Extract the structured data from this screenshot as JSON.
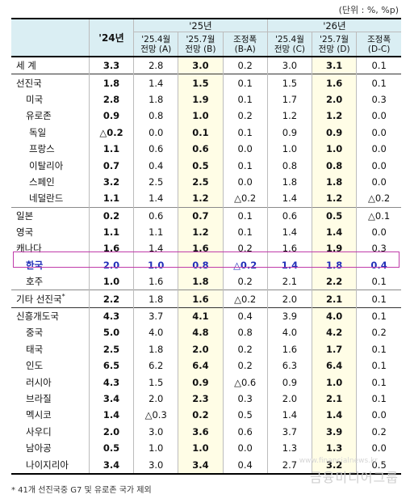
{
  "unit_note": "(단위 : %, %p)",
  "headers": {
    "col24": "'24년",
    "col25": "'25년",
    "col26": "'26년",
    "sub25": [
      [
        "'25.4월",
        "전망 (A)"
      ],
      [
        "'25.7월",
        "전망 (B)"
      ],
      [
        "조정폭",
        "(B-A)"
      ]
    ],
    "sub26": [
      [
        "'25.4월",
        "전망 (C)"
      ],
      [
        "'25.7월",
        "전망 (D)"
      ],
      [
        "조정폭",
        "(D-C)"
      ]
    ]
  },
  "rows": [
    {
      "name": "세  계",
      "v": [
        "3.3",
        "2.8",
        "3.0",
        "0.2",
        "3.0",
        "3.1",
        "0.1"
      ]
    },
    {
      "name": "선진국",
      "v": [
        "1.8",
        "1.4",
        "1.5",
        "0.1",
        "1.5",
        "1.6",
        "0.1"
      ]
    },
    {
      "name": "미국",
      "v": [
        "2.8",
        "1.8",
        "1.9",
        "0.1",
        "1.7",
        "2.0",
        "0.3"
      ]
    },
    {
      "name": "유로존",
      "v": [
        "0.9",
        "0.8",
        "1.0",
        "0.2",
        "1.2",
        "1.2",
        "0.0"
      ]
    },
    {
      "name": "독일",
      "v": [
        "△0.2",
        "0.0",
        "0.1",
        "0.1",
        "0.9",
        "0.9",
        "0.0"
      ]
    },
    {
      "name": "프랑스",
      "v": [
        "1.1",
        "0.6",
        "0.6",
        "0.0",
        "1.0",
        "1.0",
        "0.0"
      ]
    },
    {
      "name": "이탈리아",
      "v": [
        "0.7",
        "0.4",
        "0.5",
        "0.1",
        "0.8",
        "0.8",
        "0.0"
      ]
    },
    {
      "name": "스페인",
      "v": [
        "3.2",
        "2.5",
        "2.5",
        "0.0",
        "1.8",
        "1.8",
        "0.0"
      ]
    },
    {
      "name": "네덜란드",
      "v": [
        "1.1",
        "1.4",
        "1.2",
        "△0.2",
        "1.4",
        "1.2",
        "△0.2"
      ]
    },
    {
      "name": "일본",
      "v": [
        "0.2",
        "0.6",
        "0.7",
        "0.1",
        "0.6",
        "0.5",
        "△0.1"
      ]
    },
    {
      "name": "영국",
      "v": [
        "1.1",
        "1.1",
        "1.2",
        "0.1",
        "1.4",
        "1.4",
        "0.0"
      ]
    },
    {
      "name": "캐나다",
      "v": [
        "1.6",
        "1.4",
        "1.6",
        "0.2",
        "1.6",
        "1.9",
        "0.3"
      ]
    },
    {
      "name": "한국",
      "v": [
        "2.0",
        "1.0",
        "0.8",
        "△0.2",
        "1.4",
        "1.8",
        "0.4"
      ]
    },
    {
      "name": "호주",
      "v": [
        "1.0",
        "1.6",
        "1.8",
        "0.2",
        "2.1",
        "2.2",
        "0.1"
      ]
    },
    {
      "name": "기타 선진국",
      "v": [
        "2.2",
        "1.8",
        "1.6",
        "△0.2",
        "2.0",
        "2.1",
        "0.1"
      ]
    },
    {
      "name": "신흥개도국",
      "v": [
        "4.3",
        "3.7",
        "4.1",
        "0.4",
        "3.9",
        "4.0",
        "0.1"
      ]
    },
    {
      "name": "중국",
      "v": [
        "5.0",
        "4.0",
        "4.8",
        "0.8",
        "4.0",
        "4.2",
        "0.2"
      ]
    },
    {
      "name": "태국",
      "v": [
        "2.5",
        "1.8",
        "2.0",
        "0.2",
        "1.6",
        "1.7",
        "0.1"
      ]
    },
    {
      "name": "인도",
      "v": [
        "6.5",
        "6.2",
        "6.4",
        "0.2",
        "6.3",
        "6.4",
        "0.1"
      ]
    },
    {
      "name": "러시아",
      "v": [
        "4.3",
        "1.5",
        "0.9",
        "△0.6",
        "0.9",
        "1.0",
        "0.1"
      ]
    },
    {
      "name": "브라질",
      "v": [
        "3.4",
        "2.0",
        "2.3",
        "0.3",
        "2.0",
        "2.1",
        "0.1"
      ]
    },
    {
      "name": "멕시코",
      "v": [
        "1.4",
        "△0.3",
        "0.2",
        "0.5",
        "1.4",
        "1.4",
        "0.0"
      ]
    },
    {
      "name": "사우디",
      "v": [
        "2.0",
        "3.0",
        "3.6",
        "0.6",
        "3.7",
        "3.9",
        "0.2"
      ]
    },
    {
      "name": "남아공",
      "v": [
        "0.5",
        "1.0",
        "1.0",
        "0.0",
        "1.3",
        "1.3",
        "0.0"
      ]
    },
    {
      "name": "나이지리아",
      "v": [
        "3.4",
        "3.0",
        "3.4",
        "0.4",
        "2.7",
        "3.2",
        "0.5"
      ]
    }
  ],
  "footnote": "* 41개 선진국중 G7 및 유로존 국가 제외",
  "watermark": "금융미디어그룹",
  "watermark_small": "www.financialnews.kr"
}
